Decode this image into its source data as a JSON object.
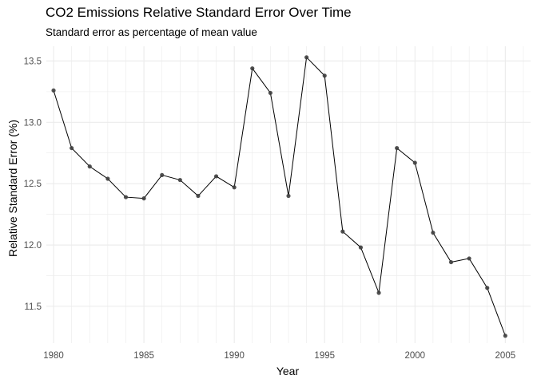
{
  "chart_data": {
    "type": "line",
    "title": "CO2 Emissions Relative Standard Error Over Time",
    "subtitle": "Standard error as percentage of mean value",
    "xlabel": "Year",
    "ylabel": "Relative Standard Error (%)",
    "xlim": [
      1979.6,
      2006.4
    ],
    "ylim": [
      11.2,
      13.62
    ],
    "x_ticks": [
      1980,
      1985,
      1990,
      1995,
      2000,
      2005
    ],
    "y_ticks": [
      11.5,
      12.0,
      12.5,
      13.0,
      13.5
    ],
    "y_tick_labels": [
      "11.5",
      "12.0",
      "12.5",
      "13.0",
      "13.5"
    ],
    "grid": true,
    "series": [
      {
        "x": [
          1980,
          1981,
          1982,
          1983,
          1984,
          1985,
          1986,
          1987,
          1988,
          1989,
          1990,
          1991,
          1992,
          1993,
          1994,
          1995,
          1996,
          1997,
          1998,
          1999,
          2000,
          2001,
          2002,
          2003,
          2004,
          2005
        ],
        "y": [
          13.26,
          12.79,
          12.64,
          12.54,
          12.39,
          12.38,
          12.57,
          12.53,
          12.4,
          12.56,
          12.47,
          13.44,
          13.24,
          12.4,
          13.53,
          13.38,
          12.11,
          11.98,
          11.61,
          12.79,
          12.67,
          12.1,
          11.86,
          11.89,
          11.65,
          11.26
        ]
      }
    ],
    "colors": {
      "line": "#000000",
      "point": "#3f3f3f",
      "grid": "#ebebeb"
    }
  }
}
